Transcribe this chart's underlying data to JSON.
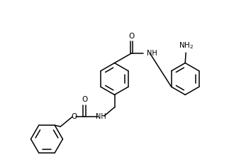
{
  "bg_color": "#ffffff",
  "line_color": "#000000",
  "line_width": 1.1,
  "font_size": 7.0,
  "fig_width": 3.23,
  "fig_height": 2.25,
  "dpi": 100,
  "xlim": [
    0,
    10
  ],
  "ylim": [
    0,
    7
  ]
}
